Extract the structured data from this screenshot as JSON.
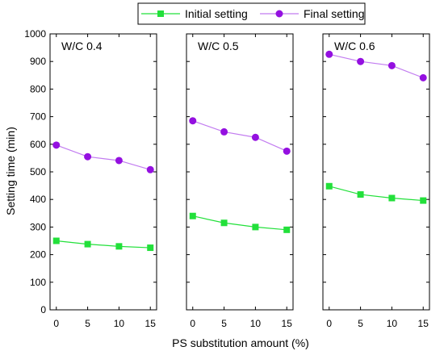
{
  "chart_data": {
    "type": "line",
    "ylabel": "Setting time (min)",
    "xlabel": "PS substitution amount (%)",
    "ylim": [
      0,
      1000
    ],
    "yticks": [
      0,
      100,
      200,
      300,
      400,
      500,
      600,
      700,
      800,
      900,
      1000
    ],
    "xlim": [
      -1,
      16
    ],
    "xticks": [
      0,
      5,
      10,
      15
    ],
    "grid": false,
    "legend_position": "top-center",
    "series_styles": [
      {
        "name": "Initial setting",
        "color": "#22e03a",
        "marker": "square"
      },
      {
        "name": "Final setting",
        "color": "#c27cf0",
        "marker_color": "#9410e0",
        "marker": "circle"
      }
    ],
    "panels": [
      {
        "title": "W/C 0.4",
        "x": [
          0,
          5,
          10,
          15
        ],
        "series": [
          {
            "name": "Initial setting",
            "values": [
              250,
              238,
              230,
              225
            ]
          },
          {
            "name": "Final setting",
            "values": [
              597,
              555,
              541,
              508
            ]
          }
        ]
      },
      {
        "title": "W/C 0.5",
        "x": [
          0,
          5,
          10,
          15
        ],
        "series": [
          {
            "name": "Initial setting",
            "values": [
              340,
              315,
              300,
              290
            ]
          },
          {
            "name": "Final setting",
            "values": [
              685,
              645,
              625,
              575
            ]
          }
        ]
      },
      {
        "title": "W/C 0.6",
        "x": [
          0,
          5,
          10,
          15
        ],
        "series": [
          {
            "name": "Initial setting",
            "values": [
              448,
              418,
              405,
              396
            ]
          },
          {
            "name": "Final setting",
            "values": [
              926,
              900,
              885,
              841
            ]
          }
        ]
      }
    ]
  }
}
